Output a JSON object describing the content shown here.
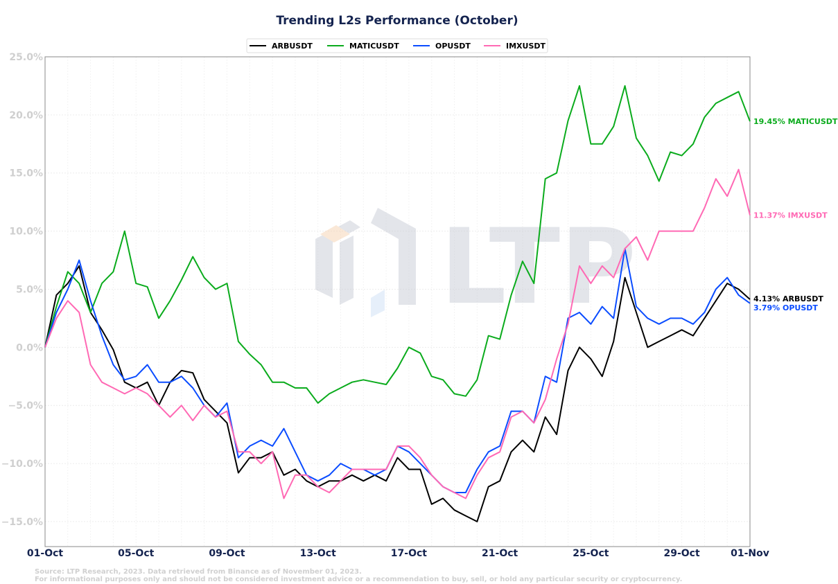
{
  "chart_data": {
    "type": "line",
    "title": "Trending L2s Performance (October)",
    "xlabel": "",
    "ylabel": "",
    "x_unit": "days since 01-Oct",
    "x": [
      0,
      0.5,
      1,
      1.5,
      2,
      2.5,
      3,
      3.5,
      4,
      4.5,
      5,
      5.5,
      6,
      6.5,
      7,
      7.5,
      8,
      8.5,
      9,
      9.5,
      10,
      10.5,
      11,
      11.5,
      12,
      12.5,
      13,
      13.5,
      14,
      14.5,
      15,
      15.5,
      16,
      16.5,
      17,
      17.5,
      18,
      18.5,
      19,
      19.5,
      20,
      20.5,
      21,
      21.5,
      22,
      22.5,
      23,
      23.5,
      24,
      24.5,
      25,
      25.5,
      26,
      26.5,
      27,
      27.5,
      28,
      28.5,
      29,
      29.5,
      30,
      30.5,
      31
    ],
    "xlim": [
      0,
      31
    ],
    "ylim": [
      -17.15,
      25
    ],
    "x_ticks": [
      {
        "day": 0,
        "label": "01-Oct"
      },
      {
        "day": 4,
        "label": "05-Oct"
      },
      {
        "day": 8,
        "label": "09-Oct"
      },
      {
        "day": 12,
        "label": "13-Oct"
      },
      {
        "day": 16,
        "label": "17-Oct"
      },
      {
        "day": 20,
        "label": "21-Oct"
      },
      {
        "day": 24,
        "label": "25-Oct"
      },
      {
        "day": 28,
        "label": "29-Oct"
      },
      {
        "day": 31,
        "label": "01-Nov"
      }
    ],
    "y_ticks": [
      {
        "value": 25,
        "label": "25.0%"
      },
      {
        "value": 20,
        "label": "20.0%"
      },
      {
        "value": 15,
        "label": "15.0%"
      },
      {
        "value": 10,
        "label": "10.0%"
      },
      {
        "value": 5,
        "label": "5.0%"
      },
      {
        "value": 0,
        "label": "0.0%"
      },
      {
        "value": -5,
        "label": "−5.0%"
      },
      {
        "value": -10,
        "label": "−10.0%"
      },
      {
        "value": -15,
        "label": "−15.0%"
      }
    ],
    "grid": true,
    "legend_position": "top-center",
    "series": [
      {
        "name": "ARBUSDT",
        "color": "#000000",
        "end_label": "4.13% ARBUSDT",
        "values": [
          0,
          4.5,
          5.5,
          7.0,
          3.0,
          1.5,
          -0.2,
          -3.0,
          -3.5,
          -3.0,
          -5.0,
          -3.0,
          -2.0,
          -2.2,
          -4.5,
          -5.5,
          -6.5,
          -10.8,
          -9.5,
          -9.5,
          -9.0,
          -11.0,
          -10.5,
          -11.5,
          -12.0,
          -11.5,
          -11.5,
          -11.0,
          -11.5,
          -11.0,
          -11.5,
          -9.5,
          -10.5,
          -10.5,
          -13.5,
          -13.0,
          -14.0,
          -14.5,
          -15.0,
          -12.0,
          -11.5,
          -9.0,
          -8.0,
          -9.0,
          -6.0,
          -7.5,
          -2.0,
          0.0,
          -1.0,
          -2.5,
          0.5,
          6.0,
          3.0,
          0.0,
          0.5,
          1.0,
          1.5,
          1.0,
          2.5,
          4.0,
          5.5,
          5.0,
          4.13
        ]
      },
      {
        "name": "MATICUSDT",
        "color": "#0aab1c",
        "end_label": "19.45% MATICUSDT",
        "values": [
          0,
          3.5,
          6.5,
          5.5,
          3.0,
          5.5,
          6.5,
          10.0,
          5.5,
          5.2,
          2.5,
          4.0,
          5.8,
          7.8,
          6.0,
          5.0,
          5.5,
          0.5,
          -0.6,
          -1.5,
          -3.0,
          -3.0,
          -3.5,
          -3.5,
          -4.8,
          -4.0,
          -3.5,
          -3.0,
          -2.8,
          -3.0,
          -3.2,
          -1.8,
          0.0,
          -0.5,
          -2.5,
          -2.8,
          -4.0,
          -4.2,
          -2.8,
          1.0,
          0.7,
          4.5,
          7.4,
          5.5,
          14.5,
          15.0,
          19.5,
          22.5,
          17.5,
          17.5,
          19.0,
          22.5,
          18.0,
          16.5,
          14.3,
          16.8,
          16.5,
          17.5,
          19.8,
          21.0,
          21.5,
          22.0,
          19.45
        ]
      },
      {
        "name": "OPUSDT",
        "color": "#0a4cff",
        "end_label": "3.79% OPUSDT",
        "values": [
          0,
          3.0,
          5.0,
          7.5,
          4.0,
          1.0,
          -1.5,
          -2.8,
          -2.5,
          -1.5,
          -3.0,
          -3.0,
          -2.5,
          -3.5,
          -5.0,
          -6.0,
          -4.8,
          -9.5,
          -8.5,
          -8.0,
          -8.5,
          -7.0,
          -9.0,
          -11.0,
          -11.5,
          -11.0,
          -10.0,
          -10.5,
          -10.5,
          -11.0,
          -10.5,
          -8.5,
          -9.0,
          -10.0,
          -11.0,
          -12.0,
          -12.5,
          -12.5,
          -10.5,
          -9.0,
          -8.5,
          -5.5,
          -5.5,
          -6.5,
          -2.5,
          -3.0,
          2.5,
          3.0,
          2.0,
          3.5,
          2.5,
          8.5,
          3.5,
          2.5,
          2.0,
          2.5,
          2.5,
          2.0,
          3.0,
          5.0,
          6.0,
          4.5,
          3.79
        ]
      },
      {
        "name": "IMXUSDT",
        "color": "#ff69b4",
        "end_label": "11.37% IMXUSDT",
        "values": [
          0,
          2.5,
          4.0,
          3.0,
          -1.5,
          -3.0,
          -3.5,
          -4.0,
          -3.5,
          -4.0,
          -5.0,
          -6.0,
          -5.0,
          -6.3,
          -5.0,
          -6.0,
          -5.5,
          -9.0,
          -9.0,
          -10.0,
          -9.0,
          -13.0,
          -11.0,
          -11.0,
          -12.0,
          -12.5,
          -11.5,
          -10.5,
          -10.5,
          -10.5,
          -10.5,
          -8.5,
          -8.5,
          -9.5,
          -11.0,
          -12.0,
          -12.5,
          -13.0,
          -11.0,
          -9.5,
          -9.0,
          -6.0,
          -5.5,
          -6.5,
          -4.5,
          -1.0,
          2.0,
          7.0,
          5.5,
          7.0,
          6.0,
          8.5,
          9.5,
          7.5,
          10.0,
          10.0,
          10.0,
          10.0,
          12.0,
          14.5,
          13.0,
          15.3,
          11.37
        ]
      }
    ],
    "footnote": [
      "Source: LTP Research, 2023. Data retrieved from Binance as of November 01, 2023.",
      "For informational purposes only and should not be considered investment advice or a recommendation to buy, sell, or hold any particular security or cryptocurrency."
    ],
    "watermark": "LTP"
  }
}
